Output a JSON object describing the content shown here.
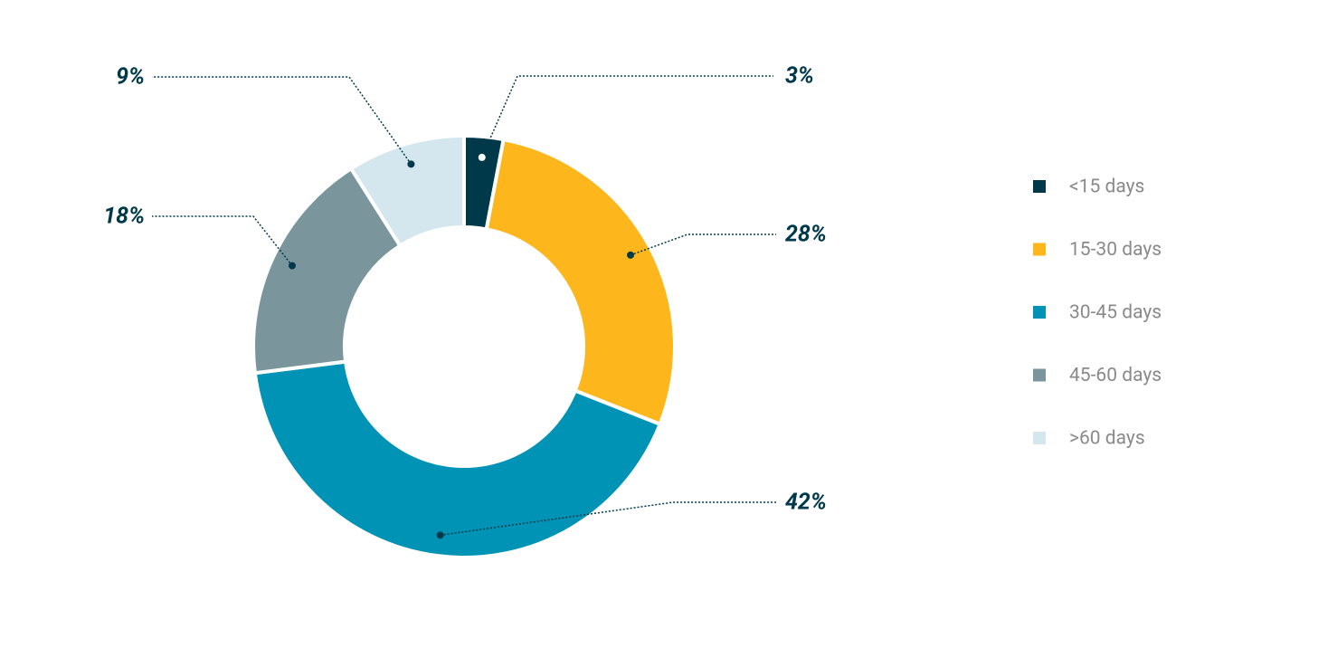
{
  "chart_data": {
    "type": "pie",
    "categories": [
      "<15 days",
      "15-30 days",
      "30-45 days",
      "45-60 days",
      ">60 days"
    ],
    "values": [
      3,
      28,
      42,
      18,
      9
    ],
    "value_labels": [
      "3%",
      "28%",
      "42%",
      "18%",
      "9%"
    ],
    "colors": [
      "#00394a",
      "#fdb71c",
      "#0093b5",
      "#7a969c",
      "#d4e7ee"
    ],
    "legend": "right"
  }
}
